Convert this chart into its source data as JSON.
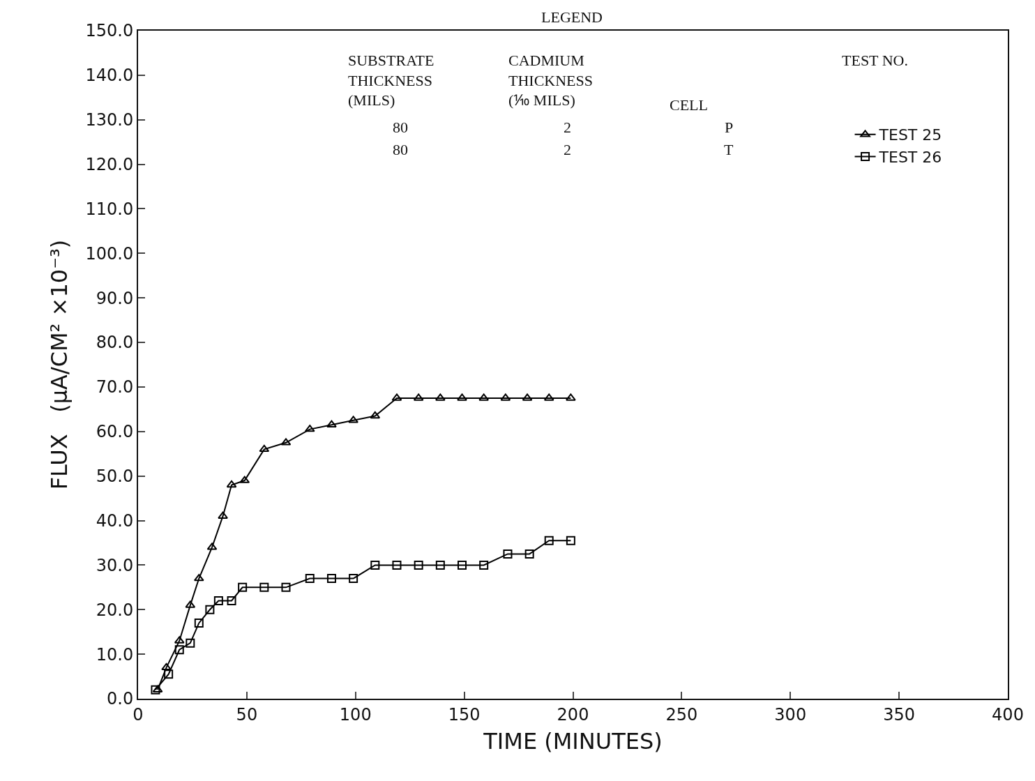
{
  "chart_data": {
    "type": "line",
    "xlabel": "TIME (MINUTES)",
    "ylabel": "FLUX   (μA/CM² ×10⁻³)",
    "series": [
      {
        "name": "TEST 25",
        "color": "#000000",
        "marker": "triangle",
        "x": [
          9,
          13,
          19,
          24,
          28,
          34,
          39,
          43,
          49,
          58,
          68,
          79,
          89,
          99,
          109,
          119,
          129,
          139,
          149,
          159,
          169,
          179,
          189,
          199
        ],
        "values": [
          2,
          7,
          13,
          21,
          27,
          34,
          41,
          48,
          49,
          56,
          57.5,
          60.5,
          61.5,
          62.5,
          63.5,
          67.5,
          67.5,
          67.5,
          67.5,
          67.5,
          67.5,
          67.5,
          67.5,
          67.5
        ]
      },
      {
        "name": "TEST 26",
        "color": "#000000",
        "marker": "square",
        "x": [
          8,
          14,
          19,
          24,
          28,
          33,
          37,
          43,
          48,
          58,
          68,
          79,
          89,
          99,
          109,
          119,
          129,
          139,
          149,
          159,
          170,
          180,
          189,
          199
        ],
        "values": [
          2,
          5.5,
          11,
          12.5,
          17,
          20,
          22,
          22,
          25,
          25,
          25,
          27,
          27,
          27,
          30,
          30,
          30,
          30,
          30,
          30,
          32.5,
          32.5,
          35.5,
          35.5
        ]
      }
    ],
    "xlim": [
      0,
      400
    ],
    "xticks": [
      0,
      50,
      100,
      150,
      200,
      250,
      300,
      350,
      400
    ],
    "ylim": [
      0,
      150
    ],
    "yticks": [
      {
        "value": 0,
        "label": "0.0"
      },
      {
        "value": 10,
        "label": "10.0"
      },
      {
        "value": 20,
        "label": "20.0"
      },
      {
        "value": 30,
        "label": "30.0"
      },
      {
        "value": 40,
        "label": "40.0"
      },
      {
        "value": 50,
        "label": "50.0"
      },
      {
        "value": 60,
        "label": "60.0"
      },
      {
        "value": 70,
        "label": "70.0"
      },
      {
        "value": 80,
        "label": "80.0"
      },
      {
        "value": 90,
        "label": "90.0"
      },
      {
        "value": 100,
        "label": "100.0"
      },
      {
        "value": 110,
        "label": "110.0"
      },
      {
        "value": 120,
        "label": "120.0"
      },
      {
        "value": 130,
        "label": "130.0"
      },
      {
        "value": 140,
        "label": "140.0"
      },
      {
        "value": 150,
        "label": "150.0"
      }
    ],
    "grid": false,
    "legend": "top right",
    "line_style": "solid",
    "annotations": [
      "LEGEND",
      "SUBSTRATE\nTHICKNESS\n(MILS)",
      "CADMIUM\nTHICKNESS\n(⅒ MILS)",
      "CELL",
      "TEST NO.",
      "80",
      "2",
      "P",
      "80",
      "2",
      "T"
    ]
  }
}
